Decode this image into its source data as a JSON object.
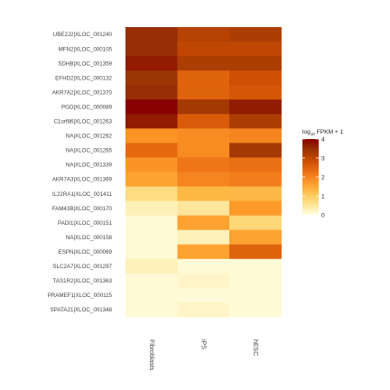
{
  "chart_data": {
    "type": "heatmap",
    "rows": [
      "UBE2J2|XLOC_001240",
      "MFN2|XLOC_000105",
      "SDHB|XLOC_001359",
      "EFHD2|XLOC_000132",
      "AKR7A2|XLOC_001370",
      "PGD|XLOC_000089",
      "C1orf86|XLOC_001263",
      "NA|XLOC_001262",
      "NA|XLOC_001265",
      "NA|XLOC_001339",
      "AKR7A3|XLOC_001369",
      "IL22RA1|XLOC_001411",
      "FAM43B|XLOC_000170",
      "PADI1|XLOC_000151",
      "NA|XLOC_000158",
      "ESPN|XLOC_000069",
      "SLC2A7|XLOC_001297",
      "TAS1R2|XLOC_001363",
      "PRAMEF1|XLOC_000115",
      "SPATA21|XLOC_001348"
    ],
    "columns": [
      "Fibroblasts",
      "iPS",
      "hESC"
    ],
    "values": [
      [
        3.5,
        3.1,
        3.2
      ],
      [
        3.5,
        3.0,
        3.0
      ],
      [
        3.7,
        3.2,
        3.2
      ],
      [
        3.4,
        2.5,
        2.8
      ],
      [
        3.5,
        2.5,
        2.7
      ],
      [
        4.0,
        3.3,
        3.7
      ],
      [
        3.7,
        2.6,
        3.2
      ],
      [
        1.8,
        1.9,
        2.0
      ],
      [
        2.4,
        1.9,
        3.3
      ],
      [
        1.8,
        2.2,
        2.3
      ],
      [
        1.6,
        2.0,
        2.1
      ],
      [
        0.7,
        1.3,
        1.3
      ],
      [
        0.3,
        0.5,
        1.7
      ],
      [
        0.1,
        1.6,
        0.8
      ],
      [
        0.1,
        0.3,
        1.6
      ],
      [
        0.1,
        1.6,
        2.5
      ],
      [
        0.3,
        0.1,
        0.1
      ],
      [
        0.1,
        0.2,
        0.1
      ],
      [
        0.1,
        0.1,
        0.1
      ],
      [
        0.1,
        0.2,
        0.1
      ]
    ],
    "legend": {
      "title_prefix": "log",
      "title_sub": "10",
      "title_suffix": " FPKM + 1",
      "ticks": [
        0,
        1,
        2,
        3,
        4
      ],
      "tick_labels": [
        "0",
        "1",
        "2",
        "3",
        "4"
      ],
      "range": [
        0,
        4
      ],
      "placement": "right"
    },
    "colormap": [
      "#ffffe5",
      "#fee391",
      "#fec44f",
      "#fe9929",
      "#ec7014",
      "#cc4c02",
      "#993404",
      "#8b0000"
    ]
  }
}
